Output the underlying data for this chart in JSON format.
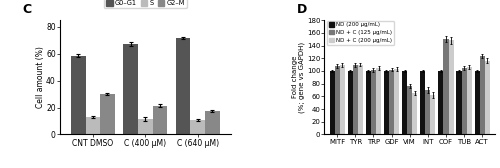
{
  "chart_C": {
    "title": "C",
    "categories": [
      "CNT DMSO",
      "C (400 μM)",
      "C (640 μM)"
    ],
    "series": {
      "G0-G1": {
        "values": [
          58.5,
          67.5,
          71.5
        ],
        "errors": [
          1.0,
          1.5,
          0.8
        ],
        "color": "#555555"
      },
      "S": {
        "values": [
          13.0,
          11.5,
          10.5
        ],
        "errors": [
          0.8,
          1.2,
          0.6
        ],
        "color": "#bbbbbb"
      },
      "G2-M": {
        "values": [
          30.0,
          21.5,
          17.5
        ],
        "errors": [
          0.8,
          1.0,
          0.8
        ],
        "color": "#888888"
      }
    },
    "ylabel": "Cell amount (%)",
    "ylim": [
      0,
      85
    ],
    "yticks": [
      0,
      20,
      40,
      60,
      80
    ],
    "legend_labels": [
      "G0–G1",
      "S",
      "G2–M"
    ]
  },
  "chart_D": {
    "title": "D",
    "categories": [
      "MITF",
      "TYR",
      "TRP",
      "GDF",
      "VIM",
      "INT",
      "COF",
      "TUB",
      "ACT"
    ],
    "series": {
      "ND (200 μg/mL)": {
        "values": [
          100,
          100,
          100,
          100,
          100,
          100,
          100,
          100,
          100
        ],
        "errors": [
          2,
          2,
          2,
          2,
          2,
          2,
          2,
          2,
          2
        ],
        "color": "#111111"
      },
      "ND + C (125 μg/mL)": {
        "values": [
          108,
          109,
          102,
          102,
          76,
          70,
          150,
          104,
          123
        ],
        "errors": [
          3,
          3,
          3,
          2,
          3,
          4,
          5,
          3,
          3
        ],
        "color": "#777777"
      },
      "ND + C (200 μg/mL)": {
        "values": [
          109,
          110,
          105,
          103,
          65,
          62,
          148,
          106,
          116
        ],
        "errors": [
          3,
          3,
          3,
          3,
          3,
          5,
          6,
          3,
          4
        ],
        "color": "#cccccc"
      }
    },
    "ylabel": "Fold change\n(%; gene vs GAPDH)",
    "ylim": [
      0,
      180
    ],
    "yticks": [
      0,
      20,
      40,
      60,
      80,
      100,
      120,
      140,
      160,
      180
    ],
    "legend_labels": [
      "ND (200 μg/mL)",
      "ND + C (125 μg/mL)",
      "ND + C (200 μg/mL)"
    ]
  }
}
